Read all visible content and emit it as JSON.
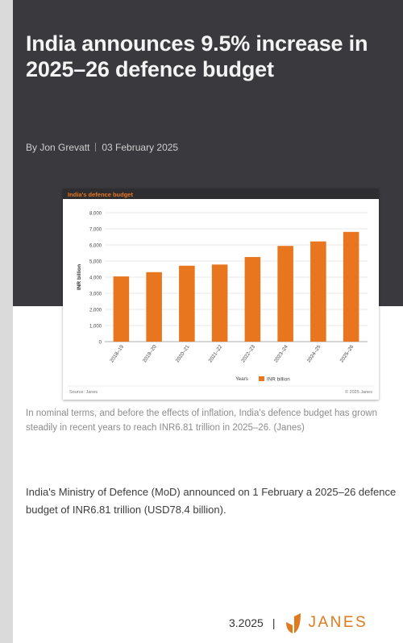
{
  "article": {
    "headline": "India announces 9.5% increase in 2025–26 defence budget",
    "author": "By Jon Grevatt",
    "date": "03 February 2025",
    "caption": "In nominal terms, and before the effects of inflation, India's defence budget has grown steadily in recent years to reach INR6.81 trillion in 2025–26. (Janes)",
    "lead": "India's Ministry of Defence (MoD) announced on 1 February a 2025–26 defence budget of INR6.81 trillion (USD78.4 billion)."
  },
  "footer": {
    "date": "3.2025",
    "brand": "JANES"
  },
  "colors": {
    "hero_bg": "#3a3a3e",
    "accent": "#e8761e",
    "brand": "#e07a1c"
  },
  "chart_data": {
    "type": "bar",
    "title": "India's defence budget",
    "ylabel": "INR billion",
    "xlabel": "Years",
    "categories": [
      "2018–19",
      "2019–20",
      "2020–21",
      "2021–22",
      "2022–23",
      "2023–24",
      "2024–25",
      "2025–26"
    ],
    "series": [
      {
        "name": "INR billion",
        "values": [
          4047,
          4311,
          4713,
          4785,
          5251,
          5940,
          6219,
          6810
        ]
      }
    ],
    "ylim": [
      0,
      8000
    ],
    "yticks": [
      "0",
      "1,000",
      "2,000",
      "3,000",
      "4,000",
      "5,000",
      "6,000",
      "7,000",
      "8,000"
    ],
    "grid": true,
    "legend": "bottom-center",
    "source": "Source: Janes",
    "copyright": "© 2025 Janes",
    "bar_color": "#e8761e",
    "title_bg": "#e8761e"
  }
}
